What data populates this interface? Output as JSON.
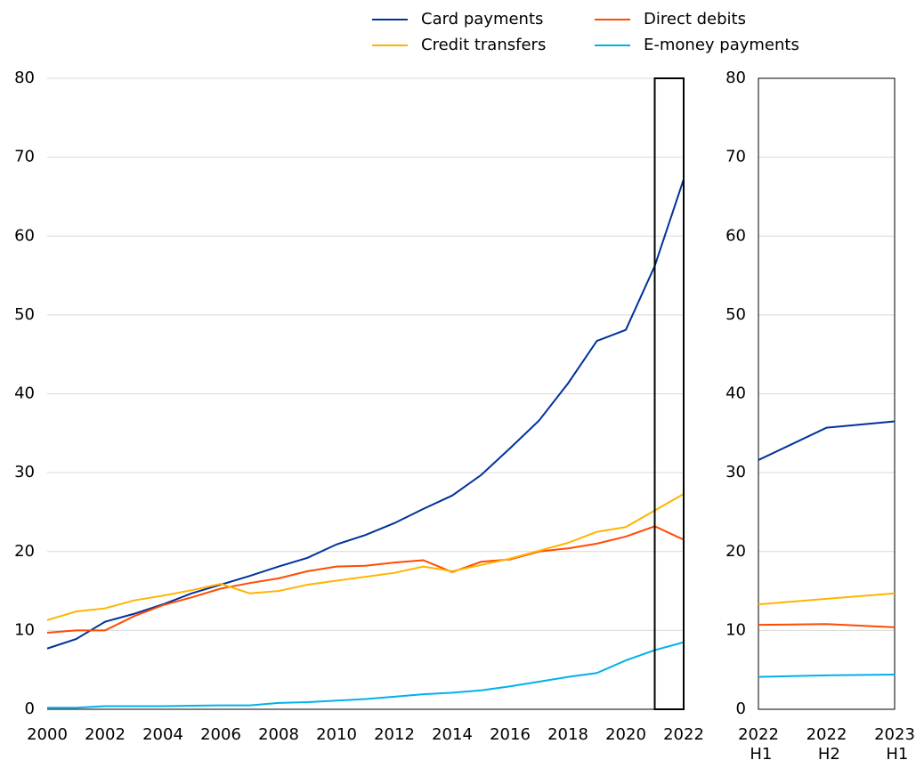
{
  "chart_data": [
    {
      "type": "line",
      "x": [
        2000,
        2001,
        2002,
        2003,
        2004,
        2005,
        2006,
        2007,
        2008,
        2009,
        2010,
        2011,
        2012,
        2013,
        2014,
        2015,
        2016,
        2017,
        2018,
        2019,
        2020,
        2021,
        2022
      ],
      "xlim": [
        2000,
        2022
      ],
      "xticks": [
        2000,
        2002,
        2004,
        2006,
        2008,
        2010,
        2012,
        2014,
        2016,
        2018,
        2020,
        2022
      ],
      "ylim": [
        0,
        80
      ],
      "yticks": [
        0,
        10,
        20,
        30,
        40,
        50,
        60,
        70,
        80
      ],
      "grid": true,
      "legend": "top",
      "series": [
        {
          "name": "Card payments",
          "color": "#003299",
          "values": [
            7.7,
            8.9,
            11.1,
            12.1,
            13.3,
            14.7,
            15.8,
            16.9,
            18.1,
            19.2,
            20.9,
            22.1,
            23.6,
            25.4,
            27.1,
            29.7,
            33.1,
            36.6,
            41.3,
            46.7,
            48.1,
            56.2,
            67.2
          ]
        },
        {
          "name": "Direct debits",
          "color": "#ff4b00",
          "values": [
            9.7,
            10.0,
            10.0,
            11.8,
            13.2,
            14.2,
            15.3,
            16.0,
            16.6,
            17.5,
            18.1,
            18.2,
            18.6,
            18.9,
            17.4,
            18.7,
            19.0,
            20.0,
            20.4,
            21.0,
            21.9,
            23.2,
            21.5
          ]
        },
        {
          "name": "Credit transfers",
          "color": "#ffb400",
          "values": [
            11.3,
            12.4,
            12.8,
            13.8,
            14.4,
            15.1,
            15.9,
            14.7,
            15.0,
            15.8,
            16.3,
            16.8,
            17.3,
            18.1,
            17.5,
            18.3,
            19.1,
            20.1,
            21.1,
            22.5,
            23.1,
            25.2,
            27.3
          ]
        },
        {
          "name": "E-money payments",
          "color": "#00b1ea",
          "values": [
            0.2,
            0.2,
            0.4,
            0.4,
            0.4,
            0.45,
            0.5,
            0.5,
            0.8,
            0.9,
            1.1,
            1.3,
            1.6,
            1.9,
            2.1,
            2.4,
            2.9,
            3.5,
            4.1,
            4.6,
            6.2,
            7.5,
            8.5
          ]
        }
      ]
    },
    {
      "type": "line",
      "categories": [
        "2022 H1",
        "2022 H2",
        "2023 H1"
      ],
      "ylim": [
        0,
        80
      ],
      "yticks": [
        0,
        10,
        20,
        30,
        40,
        50,
        60,
        70,
        80
      ],
      "grid": true,
      "series": [
        {
          "color": "#003299",
          "values": [
            31.6,
            35.7,
            36.5
          ]
        },
        {
          "color": "#ff4b00",
          "values": [
            10.7,
            10.8,
            10.4
          ]
        },
        {
          "color": "#ffb400",
          "values": [
            13.3,
            14.0,
            14.7
          ]
        },
        {
          "color": "#00b1ea",
          "values": [
            4.1,
            4.3,
            4.4
          ]
        }
      ]
    }
  ]
}
